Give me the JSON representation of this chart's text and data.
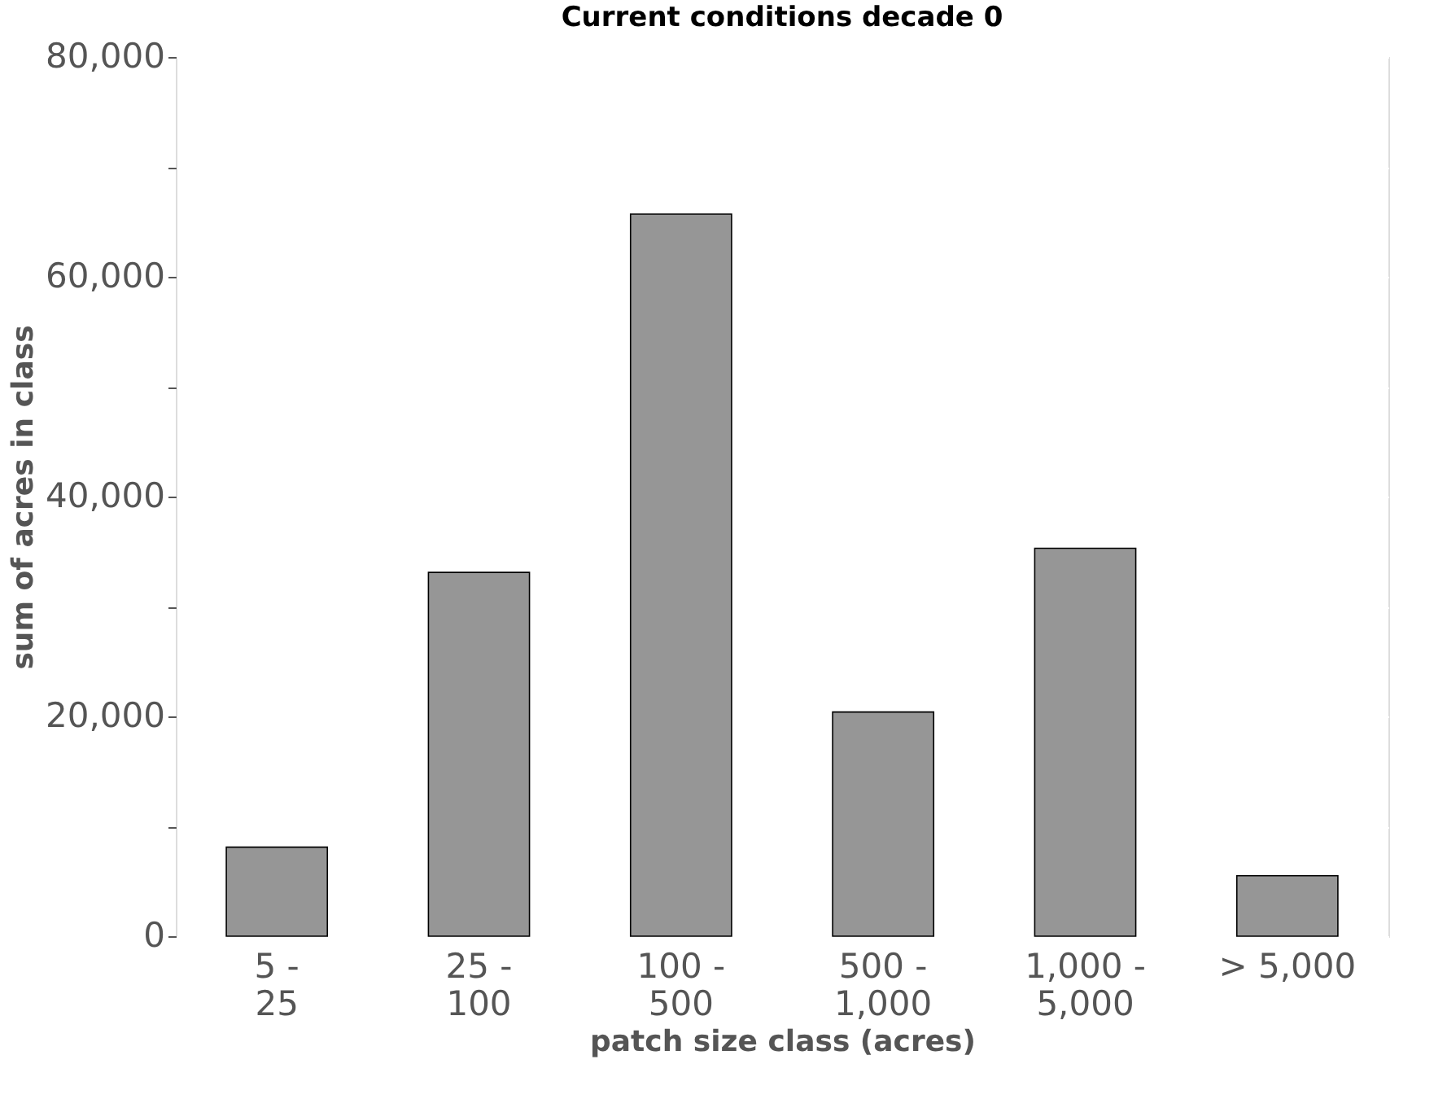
{
  "chart_data": {
    "type": "bar",
    "title": "Current conditions decade 0",
    "xlabel": "patch size class (acres)",
    "ylabel": "sum of acres in class",
    "categories": [
      "5 - 25",
      "25 - 100",
      "100 - 500",
      "500 - 1,000",
      "1,000 - 5,000",
      "> 5,000"
    ],
    "values": [
      8100,
      33100,
      65700,
      20400,
      35300,
      5500
    ],
    "color": "#969696",
    "ylim": [
      0,
      80000
    ],
    "yticks": [
      0,
      {
        "value": 10000,
        "label": null
      },
      {
        "value": 20000,
        "label": "20,000"
      },
      {
        "value": 30000,
        "label": null
      },
      {
        "value": 40000,
        "label": "40,000"
      },
      {
        "value": 50000,
        "label": null
      },
      {
        "value": 60000,
        "label": "60,000"
      },
      {
        "value": 70000,
        "label": null
      },
      {
        "value": 80000,
        "label": "80,000"
      }
    ],
    "grid": "y"
  }
}
